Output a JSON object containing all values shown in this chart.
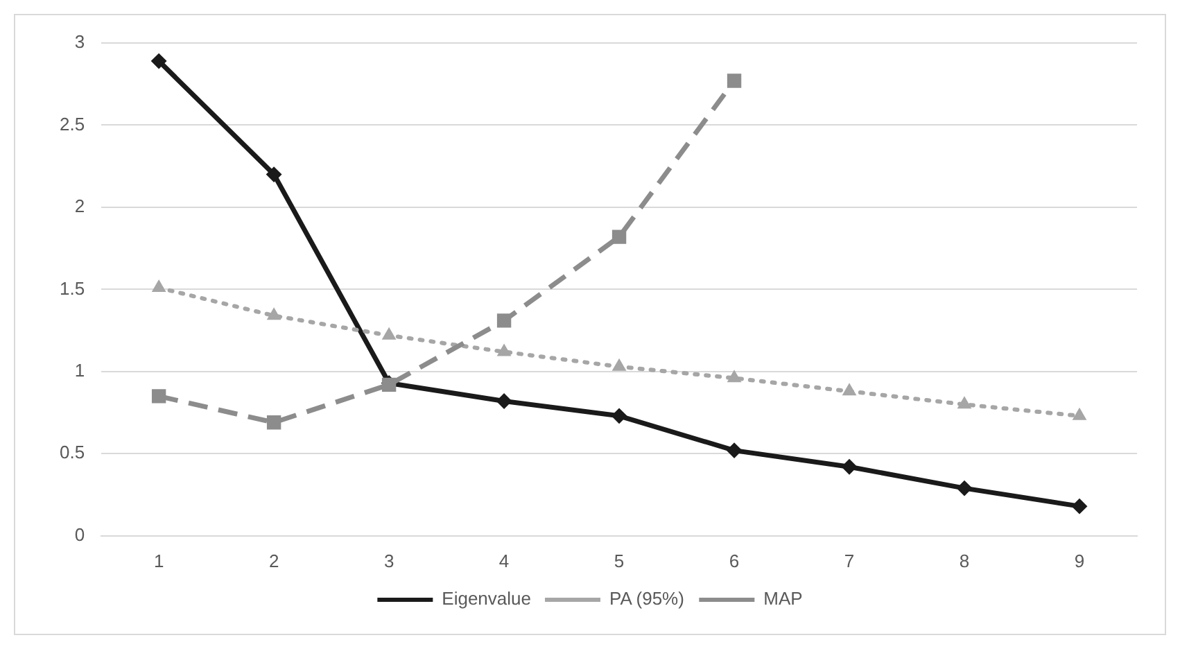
{
  "chart_data": {
    "type": "line",
    "categories": [
      "1",
      "2",
      "3",
      "4",
      "5",
      "6",
      "7",
      "8",
      "9"
    ],
    "series": [
      {
        "name": "Eigenvalue",
        "color": "#1a1a1a",
        "marker": "diamond",
        "line_style": "solid",
        "values": [
          2.89,
          2.2,
          0.93,
          0.82,
          0.73,
          0.52,
          0.42,
          0.29,
          0.18
        ]
      },
      {
        "name": "PA (95%)",
        "color": "#a6a6a6",
        "marker": "triangle",
        "line_style": "dotted",
        "values": [
          1.51,
          1.34,
          1.22,
          1.12,
          1.03,
          0.96,
          0.88,
          0.8,
          0.73
        ]
      },
      {
        "name": "MAP",
        "color": "#8c8c8c",
        "marker": "square",
        "line_style": "dashed",
        "values": [
          0.85,
          0.69,
          0.92,
          1.31,
          1.82,
          2.77,
          null,
          null,
          null
        ]
      }
    ],
    "ylim": [
      0,
      3
    ],
    "yticks": [
      0,
      0.5,
      1,
      1.5,
      2,
      2.5,
      3
    ],
    "grid": "y",
    "legend": "bottom"
  }
}
